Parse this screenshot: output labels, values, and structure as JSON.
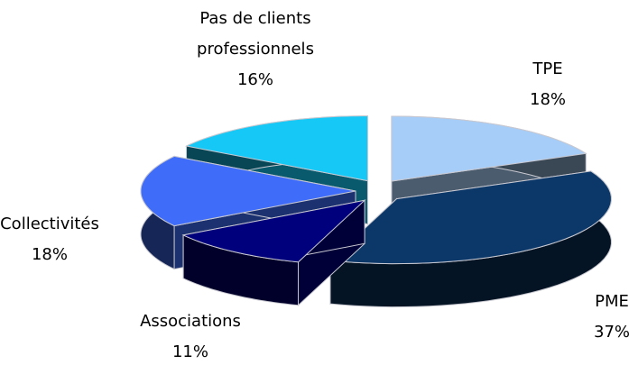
{
  "chart_data": {
    "type": "pie3d",
    "categories": [
      "TPE",
      "PME",
      "Associations",
      "Collectivités",
      "Pas de clients professionnels"
    ],
    "values": [
      18,
      37,
      11,
      18,
      16
    ],
    "value_labels": [
      "18%",
      "37%",
      "11%",
      "18%",
      "16%"
    ],
    "series": [
      {
        "colors": [
          "#a6cdf7",
          "#0b3869",
          "#00007c",
          "#3f6cf8",
          "#16c8f5"
        ]
      }
    ]
  }
}
